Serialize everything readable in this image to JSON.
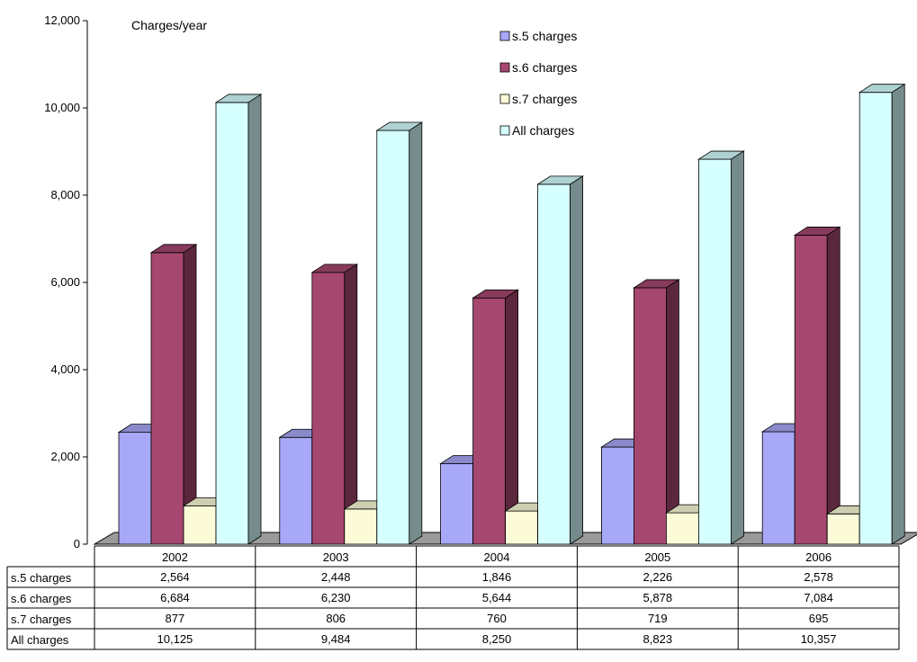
{
  "chart_data": {
    "type": "bar",
    "title": "Charges/year",
    "xlabel": "",
    "ylabel": "",
    "ylim": [
      0,
      12000
    ],
    "yticks": [
      0,
      2000,
      4000,
      6000,
      8000,
      10000,
      12000
    ],
    "ytick_labels": [
      "0",
      "2,000",
      "4,000",
      "6,000",
      "8,000",
      "10,000",
      "12,000"
    ],
    "categories": [
      "2002",
      "2003",
      "2004",
      "2005",
      "2006"
    ],
    "legend_position": "top-right",
    "grid": false,
    "three_d": true,
    "series": [
      {
        "name": "s.5 charges",
        "color": "#a8a8f8",
        "values": [
          2564,
          2448,
          1846,
          2226,
          2578
        ],
        "labels": [
          "2,564",
          "2,448",
          "1,846",
          "2,226",
          "2,578"
        ]
      },
      {
        "name": "s.6 charges",
        "color": "#a6476f",
        "values": [
          6684,
          6230,
          5644,
          5878,
          7084
        ],
        "labels": [
          "6,684",
          "6,230",
          "5,644",
          "5,878",
          "7,084"
        ]
      },
      {
        "name": "s.7 charges",
        "color": "#fbfbd8",
        "values": [
          877,
          806,
          760,
          719,
          695
        ],
        "labels": [
          "877",
          "806",
          "760",
          "719",
          "695"
        ]
      },
      {
        "name": "All charges",
        "color": "#d6ffff",
        "values": [
          10125,
          9484,
          8250,
          8823,
          10357
        ],
        "labels": [
          "10,125",
          "9,484",
          "8,250",
          "8,823",
          "10,357"
        ]
      }
    ]
  }
}
